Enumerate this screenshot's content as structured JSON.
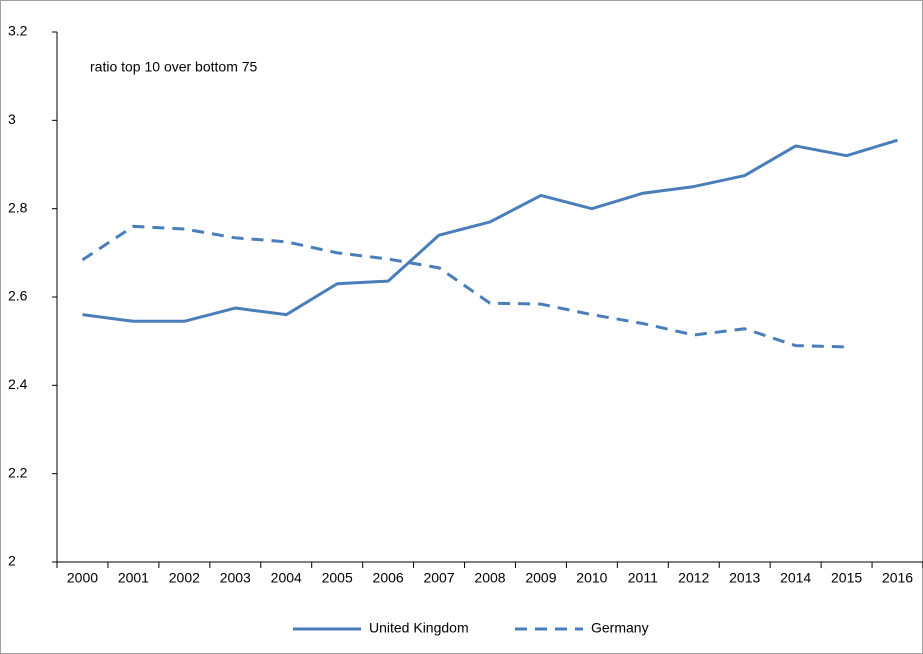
{
  "chart_data": {
    "type": "line",
    "annotation": "ratio top 10 over bottom 75",
    "categories": [
      "2000",
      "2001",
      "2002",
      "2003",
      "2004",
      "2005",
      "2006",
      "2007",
      "2008",
      "2009",
      "2010",
      "2011",
      "2012",
      "2013",
      "2014",
      "2015",
      "2016"
    ],
    "series": [
      {
        "name": "United Kingdom",
        "color": "#4a7ebb",
        "line_style": "solid",
        "values": [
          2.56,
          2.545,
          2.545,
          2.575,
          2.56,
          2.63,
          2.636,
          2.74,
          2.77,
          2.83,
          2.8,
          2.835,
          2.85,
          2.875,
          2.942,
          2.92,
          2.955
        ]
      },
      {
        "name": "Germany",
        "color": "#4a7ebb",
        "line_style": "dashed",
        "values": [
          2.684,
          2.76,
          2.754,
          2.734,
          2.725,
          2.7,
          2.686,
          2.666,
          2.586,
          2.584,
          2.56,
          2.54,
          2.514,
          2.528,
          2.49,
          2.487,
          null
        ]
      }
    ],
    "ylim": [
      2,
      3.2
    ],
    "yticks": [
      2,
      2.2,
      2.4,
      2.6,
      2.8,
      3,
      3.2
    ],
    "grid": false,
    "legend": "bottom"
  }
}
